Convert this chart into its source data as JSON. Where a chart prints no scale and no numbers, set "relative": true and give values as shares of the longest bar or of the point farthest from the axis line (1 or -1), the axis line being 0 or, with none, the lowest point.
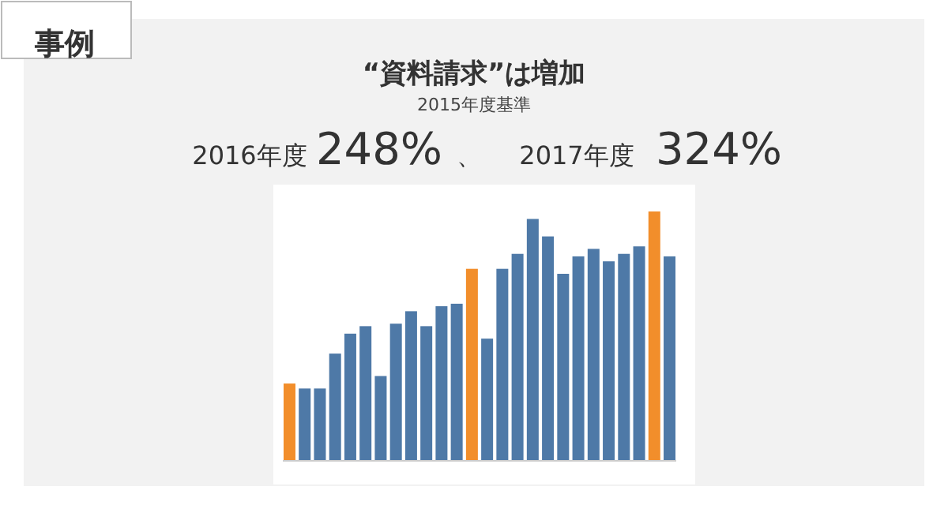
{
  "chart_data": {
    "type": "bar",
    "title": "“資料請求”は増加",
    "subtitle": "2015年度基準",
    "annotations": [
      "事例",
      "2016年度",
      "248%",
      "、",
      "2017年度",
      "324%"
    ],
    "relative": true,
    "categories": [
      null,
      null,
      null,
      null,
      null,
      null,
      null,
      null,
      null,
      null,
      null,
      null,
      null,
      null,
      null,
      null,
      null,
      null,
      null,
      null,
      null,
      null,
      null,
      null,
      null,
      null
    ],
    "values": [
      0.31,
      0.29,
      0.29,
      0.43,
      0.51,
      0.54,
      0.34,
      0.55,
      0.6,
      0.54,
      0.62,
      0.63,
      0.77,
      0.49,
      0.77,
      0.83,
      0.97,
      0.9,
      0.75,
      0.82,
      0.85,
      0.8,
      0.83,
      0.86,
      1,
      0.82
    ],
    "colors": [
      "#f28e2b",
      "#4e79a7",
      "#4e79a7",
      "#4e79a7",
      "#4e79a7",
      "#4e79a7",
      "#4e79a7",
      "#4e79a7",
      "#4e79a7",
      "#4e79a7",
      "#4e79a7",
      "#4e79a7",
      "#f28e2b",
      "#4e79a7",
      "#4e79a7",
      "#4e79a7",
      "#4e79a7",
      "#4e79a7",
      "#4e79a7",
      "#4e79a7",
      "#4e79a7",
      "#4e79a7",
      "#4e79a7",
      "#4e79a7",
      "#f28e2b",
      "#4e79a7"
    ]
  }
}
